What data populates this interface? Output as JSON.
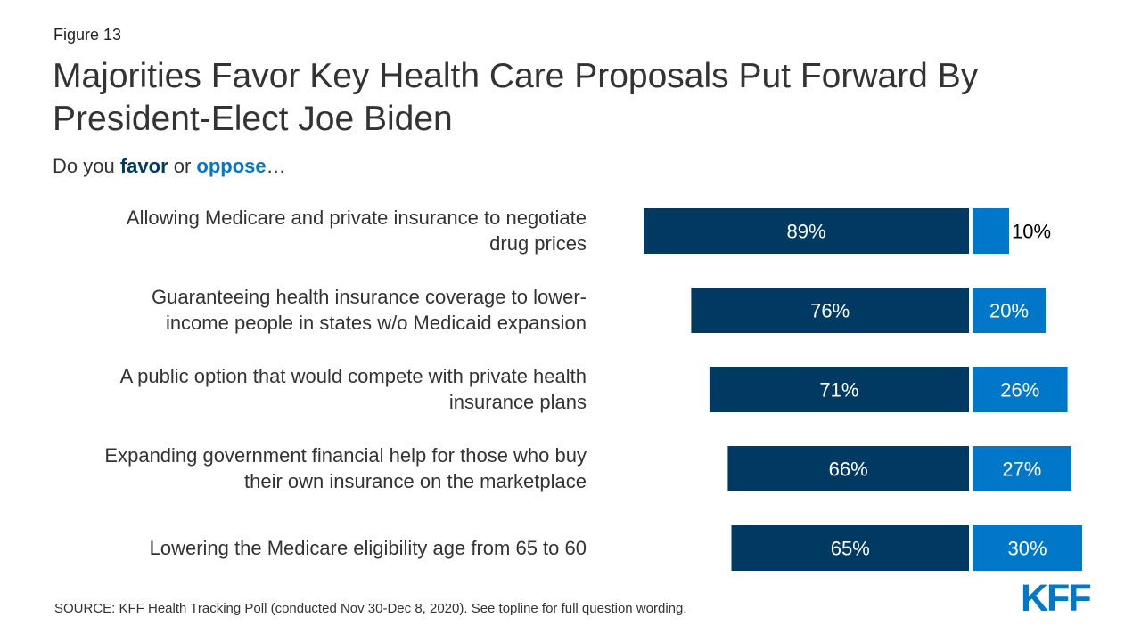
{
  "figure_label": "Figure 13",
  "title": "Majorities Favor Key Health Care Proposals Put Forward By President-Elect Joe Biden",
  "subtitle": {
    "prefix": "Do you ",
    "favor": "favor",
    "middle": " or ",
    "oppose": "oppose",
    "suffix": "…"
  },
  "source": "SOURCE: KFF Health Tracking Poll (conducted Nov 30-Dec 8, 2020). See topline for full question wording.",
  "logo_text": "KFF",
  "colors": {
    "favor": "#003a63",
    "oppose": "#0077c8",
    "favor_text": "#003a63",
    "oppose_text": "#0077c8",
    "logo": "#0077c8"
  },
  "chart_data": {
    "type": "bar",
    "orientation": "horizontal-diverging",
    "categories": [
      "Allowing Medicare and private insurance to negotiate drug prices",
      "Guaranteeing health insurance coverage to lower-income people in states w/o Medicaid expansion",
      "A public option that would compete with private health insurance plans",
      "Expanding government financial help for those who buy their own insurance on the marketplace",
      "Lowering the Medicare eligibility age from 65 to 60"
    ],
    "category_lines": [
      [
        "Allowing Medicare and private insurance to negotiate",
        "drug prices"
      ],
      [
        "Guaranteeing health insurance coverage to lower-",
        "income people in states w/o Medicaid expansion"
      ],
      [
        "A public option that would compete with private health",
        "insurance plans"
      ],
      [
        "Expanding government financial help for those who buy",
        "their own insurance on the marketplace"
      ],
      [
        "Lowering the Medicare eligibility age from 65 to 60"
      ]
    ],
    "series": [
      {
        "name": "favor",
        "values": [
          89,
          76,
          71,
          66,
          65
        ],
        "labels": [
          "89%",
          "76%",
          "71%",
          "66%",
          "65%"
        ]
      },
      {
        "name": "oppose",
        "values": [
          10,
          20,
          26,
          27,
          30
        ],
        "labels": [
          "10%",
          "20%",
          "26%",
          "27%",
          "30%"
        ]
      }
    ],
    "unit": "%"
  }
}
